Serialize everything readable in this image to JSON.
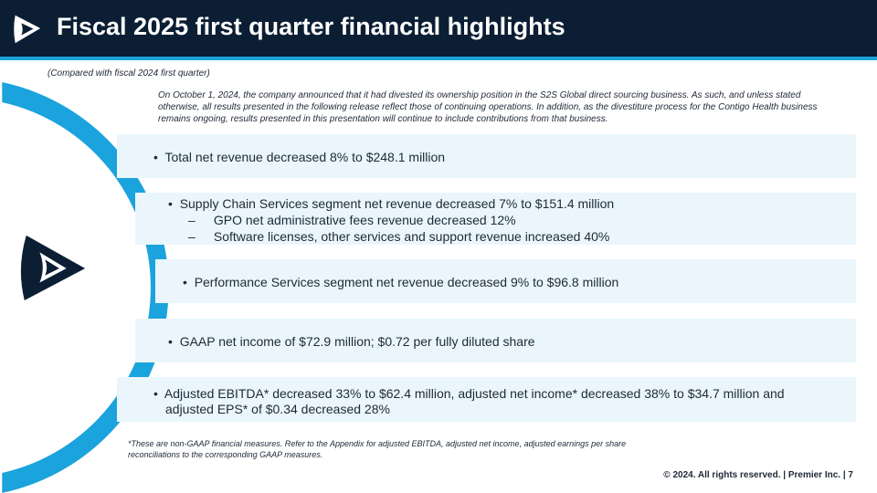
{
  "header": {
    "title": "Fiscal 2025 first quarter financial highlights"
  },
  "subtitle": "(Compared with fiscal 2024 first quarter)",
  "intro": "On October 1, 2024, the company announced that it had divested its ownership position in the S2S Global direct sourcing business. As such, and unless stated otherwise, all results presented in the following release reflect those of continuing operations. In addition, as the divestiture process for the Contigo Health business remains ongoing, results presented in this presentation will continue to include contributions from that business.",
  "highlights": [
    {
      "text": "Total net revenue decreased 8% to $248.1 million"
    },
    {
      "text": "Supply Chain Services segment net revenue decreased 7% to $151.4 million",
      "subs": [
        "GPO net administrative fees revenue decreased 12%",
        "Software licenses, other services and support revenue increased 40%"
      ]
    },
    {
      "text": "Performance Services segment net revenue decreased 9% to $96.8 million"
    },
    {
      "text": "GAAP net income of $72.9 million; $0.72 per fully diluted share"
    },
    {
      "lines": [
        "Adjusted EBITDA* decreased 33% to $62.4 million, adjusted net income* decreased 38% to $34.7 million and",
        "adjusted EPS* of $0.34 decreased 28%"
      ]
    }
  ],
  "bullet_symbol": "•",
  "dash_symbol": "–",
  "footnote": "*These are non-GAAP financial measures. Refer to the Appendix for adjusted EBITDA, adjusted net income, adjusted earnings per share reconciliations to the corresponding GAAP measures.",
  "footer": "© 2024. All rights reserved.  |  Premier Inc.  |  7",
  "colors": {
    "navy": "#0b1e33",
    "accent": "#1aa3dd",
    "band": "#eaf6fc"
  },
  "icons": {
    "logo": "premier-logo-icon"
  }
}
